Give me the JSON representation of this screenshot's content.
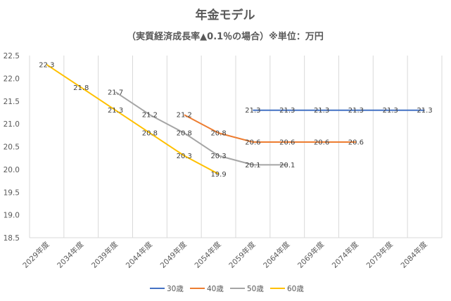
{
  "chart_data": {
    "type": "line",
    "title": "年金モデル",
    "subtitle": "（実質経済成長率▲0.1％の場合）※単位：万円",
    "categories": [
      "2029年度",
      "2034年度",
      "2039年度",
      "2044年度",
      "2049年度",
      "2054年度",
      "2059年度",
      "2064年度",
      "2069年度",
      "2074年度",
      "2079年度",
      "2084年度"
    ],
    "ylim": [
      18.5,
      22.5
    ],
    "yticks": [
      "18.5",
      "19.0",
      "19.5",
      "20.0",
      "20.5",
      "21.0",
      "21.5",
      "22.0",
      "22.5"
    ],
    "grid": "vertical",
    "legend_position": "bottom",
    "series": [
      {
        "name": "30歳",
        "color": "#4472C4",
        "values": [
          null,
          null,
          null,
          null,
          null,
          null,
          21.3,
          21.3,
          21.3,
          21.3,
          21.3,
          21.3
        ],
        "labels": [
          null,
          null,
          null,
          null,
          null,
          null,
          "21.3",
          "21.3",
          "21.3",
          "21.3",
          "21.3",
          "21.3"
        ]
      },
      {
        "name": "40歳",
        "color": "#ED7D31",
        "values": [
          null,
          null,
          null,
          null,
          21.2,
          20.8,
          20.6,
          20.6,
          20.6,
          20.6,
          null,
          null
        ],
        "labels": [
          null,
          null,
          null,
          null,
          "21.2",
          "20.8",
          "20.6",
          "20.6",
          "20.6",
          "20.6",
          null,
          null
        ]
      },
      {
        "name": "50歳",
        "color": "#A5A5A5",
        "values": [
          null,
          null,
          21.7,
          21.2,
          20.8,
          20.3,
          20.1,
          20.1,
          null,
          null,
          null,
          null
        ],
        "labels": [
          null,
          null,
          "21.7",
          "21.2",
          "20.8",
          "20.3",
          "20.1",
          "20.1",
          null,
          null,
          null,
          null
        ]
      },
      {
        "name": "60歳",
        "color": "#FFC000",
        "values": [
          22.3,
          21.8,
          21.3,
          20.8,
          20.3,
          19.9,
          null,
          null,
          null,
          null,
          null,
          null
        ],
        "labels": [
          "22.3",
          "21.8",
          "21.3",
          "20.8",
          "20.3",
          "19.9",
          null,
          null,
          null,
          null,
          null,
          null
        ]
      }
    ]
  }
}
